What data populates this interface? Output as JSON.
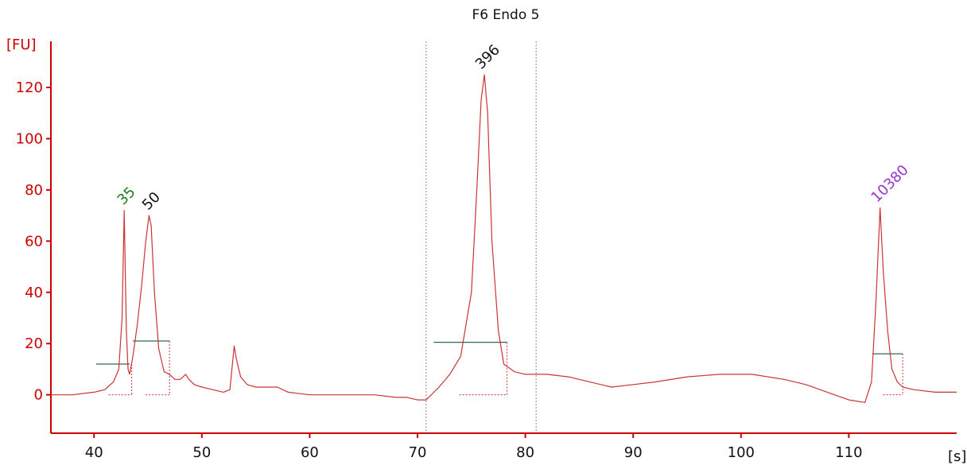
{
  "chart_data": {
    "type": "line",
    "title": "F6 Endo 5",
    "xlabel": "[s]",
    "ylabel": "[FU]",
    "xlim": [
      36,
      120
    ],
    "ylim": [
      -15,
      138
    ],
    "x_ticks": [
      40,
      50,
      60,
      70,
      80,
      90,
      100,
      110
    ],
    "y_ticks": [
      0,
      20,
      40,
      60,
      80,
      100,
      120
    ],
    "grid": false,
    "colors": {
      "trace": "#cc3333",
      "y_axis": "#cc0000",
      "x_axis": "#cc0000",
      "baseline": "#2e6b4f",
      "region_lines": "#888888"
    },
    "series": [
      {
        "x": [
          36,
          38,
          40,
          41,
          41.8,
          42.3,
          42.6,
          42.8,
          43.0,
          43.15,
          43.3,
          43.6,
          44.0,
          44.4,
          44.8,
          45.1,
          45.3,
          45.6,
          46.0,
          46.5,
          47.0,
          47.5,
          48.0,
          48.5,
          48.8,
          49.3,
          50,
          51,
          52,
          52.6,
          53.0,
          53.2,
          53.6,
          54.2,
          55,
          56,
          57,
          58,
          60,
          62,
          64,
          66,
          68,
          69,
          70,
          70.8,
          72,
          73,
          74,
          75,
          75.5,
          75.9,
          76.2,
          76.5,
          76.9,
          77.5,
          78,
          79,
          80,
          82,
          84,
          86,
          88,
          90,
          92,
          95,
          98,
          101,
          104,
          106,
          108,
          110,
          111.5,
          112.1,
          112.5,
          112.9,
          113.2,
          113.6,
          114.0,
          114.5,
          115,
          116,
          118,
          120
        ],
        "y": [
          0,
          0,
          1,
          2,
          5,
          10,
          30,
          72,
          25,
          10,
          8,
          15,
          27,
          42,
          60,
          70,
          66,
          40,
          18,
          9,
          8,
          6,
          6,
          8,
          6,
          4,
          3,
          2,
          1,
          2,
          19,
          14,
          7,
          4,
          3,
          3,
          3,
          1,
          0,
          0,
          0,
          0,
          -1,
          -1,
          -2,
          -2,
          3,
          8,
          15,
          40,
          80,
          115,
          125,
          110,
          60,
          25,
          12,
          9,
          8,
          8,
          7,
          5,
          3,
          4,
          5,
          7,
          8,
          8,
          6,
          4,
          1,
          -2,
          -3,
          5,
          35,
          73,
          48,
          25,
          10,
          5,
          3,
          2,
          1,
          1
        ]
      }
    ],
    "peaks": [
      {
        "label": "35",
        "x": 43.0,
        "y": 72,
        "color": "#1f7a1f"
      },
      {
        "label": "50",
        "x": 45.3,
        "y": 70,
        "color": "#111111"
      },
      {
        "label": "396",
        "x": 76.2,
        "y": 125,
        "color": "#111111"
      },
      {
        "label": "10380",
        "x": 112.9,
        "y": 73,
        "color": "#9933cc"
      }
    ],
    "baselines": [
      {
        "x0": 40.2,
        "x1": 43.3,
        "y": 12,
        "fill_x": 43.5
      },
      {
        "x0": 43.6,
        "x1": 47.0,
        "y": 21,
        "fill_x": 47.0
      },
      {
        "x0": 71.5,
        "x1": 78.3,
        "y": 20.5,
        "fill_x": 78.3
      },
      {
        "x0": 112.2,
        "x1": 115.0,
        "y": 16,
        "fill_x": 115.0
      }
    ],
    "region_markers": [
      70.8,
      81.0
    ]
  }
}
